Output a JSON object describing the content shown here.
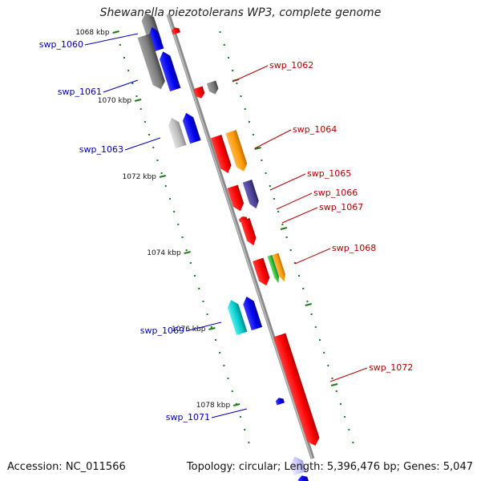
{
  "title": "Shewanella piezotolerans WP3, complete genome",
  "accession_text": "Accession: NC_011566",
  "summary_text": "Topology: circular; Length: 5,396,476 bp; Genes: 5,047",
  "colors": {
    "backbone": "#8a8a8a",
    "tick": "#1f7a1f",
    "forward_label": "#b30000",
    "reverse_label": "#0000b0",
    "red": "#ff0000",
    "blue": "#0000ee",
    "gray": "#7a7a7a",
    "lightgray": "#bdbdbd",
    "orange": "#ff9900",
    "slate": "#4b3f94",
    "green": "#33bb33",
    "cyan": "#00cccc",
    "lavender": "#c8c8ff"
  },
  "kbp_labels": [
    {
      "text": "1068 kbp"
    },
    {
      "text": "1070 kbp"
    },
    {
      "text": "1072 kbp"
    },
    {
      "text": "1074 kbp"
    },
    {
      "text": "1076 kbp"
    },
    {
      "text": "1078 kbp"
    }
  ],
  "genes": [
    {
      "name": "swp_1060",
      "strand": "reverse"
    },
    {
      "name": "swp_1061",
      "strand": "reverse"
    },
    {
      "name": "swp_1062",
      "strand": "forward"
    },
    {
      "name": "swp_1063",
      "strand": "reverse"
    },
    {
      "name": "swp_1064",
      "strand": "forward"
    },
    {
      "name": "swp_1065",
      "strand": "forward"
    },
    {
      "name": "swp_1066",
      "strand": "forward"
    },
    {
      "name": "swp_1067",
      "strand": "forward"
    },
    {
      "name": "swp_1068",
      "strand": "forward"
    },
    {
      "name": "swp_1069",
      "strand": "reverse"
    },
    {
      "name": "swp_1072",
      "strand": "forward"
    },
    {
      "name": "swp_1071",
      "strand": "reverse"
    }
  ]
}
